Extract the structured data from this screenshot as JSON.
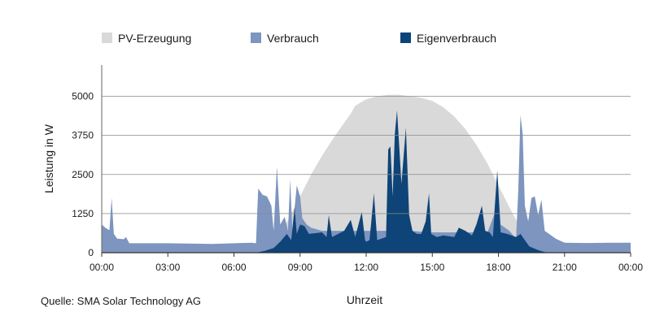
{
  "chart_data": {
    "type": "area",
    "xlabel": "Uhrzeit",
    "ylabel": "Leistung in W",
    "source": "Quelle: SMA Solar Technology AG",
    "ylim": [
      0,
      6000
    ],
    "xlim": [
      0,
      24
    ],
    "y_ticks": [
      0,
      1250,
      2500,
      3750,
      5000
    ],
    "y_tick_labels": [
      "0",
      "1250",
      "2500",
      "3750",
      "5000"
    ],
    "x_ticks": [
      0,
      3,
      6,
      9,
      12,
      15,
      18,
      21,
      24
    ],
    "x_tick_labels": [
      "00:00",
      "03:00",
      "06:00",
      "09:00",
      "12:00",
      "15:00",
      "18:00",
      "21:00",
      "00:00"
    ],
    "grid": "horizontal",
    "legend_position": "top",
    "series": [
      {
        "name": "PV-Erzeugung",
        "color": "#d9d9d9",
        "points": [
          [
            6.5,
            0
          ],
          [
            7.0,
            50
          ],
          [
            7.5,
            200
          ],
          [
            8.0,
            500
          ],
          [
            8.5,
            1100
          ],
          [
            9.0,
            1800
          ],
          [
            9.5,
            2500
          ],
          [
            10.0,
            3100
          ],
          [
            10.5,
            3650
          ],
          [
            11.0,
            4150
          ],
          [
            11.3,
            4450
          ],
          [
            11.5,
            4700
          ],
          [
            12.0,
            4900
          ],
          [
            12.5,
            5000
          ],
          [
            13.0,
            5050
          ],
          [
            13.5,
            5050
          ],
          [
            14.0,
            5000
          ],
          [
            14.5,
            4950
          ],
          [
            15.0,
            4850
          ],
          [
            15.5,
            4650
          ],
          [
            16.0,
            4350
          ],
          [
            16.5,
            3950
          ],
          [
            17.0,
            3450
          ],
          [
            17.5,
            2850
          ],
          [
            18.0,
            2150
          ],
          [
            18.5,
            1450
          ],
          [
            19.0,
            800
          ],
          [
            19.5,
            300
          ],
          [
            20.0,
            80
          ],
          [
            20.5,
            0
          ]
        ]
      },
      {
        "name": "Verbrauch",
        "color": "#7d95bf",
        "points": [
          [
            0.0,
            900
          ],
          [
            0.2,
            780
          ],
          [
            0.35,
            720
          ],
          [
            0.45,
            1750
          ],
          [
            0.55,
            600
          ],
          [
            0.7,
            450
          ],
          [
            1.0,
            430
          ],
          [
            1.1,
            500
          ],
          [
            1.25,
            300
          ],
          [
            3.0,
            300
          ],
          [
            5.0,
            280
          ],
          [
            6.0,
            300
          ],
          [
            6.8,
            320
          ],
          [
            7.0,
            300
          ],
          [
            7.1,
            2050
          ],
          [
            7.3,
            1850
          ],
          [
            7.5,
            1800
          ],
          [
            7.7,
            1500
          ],
          [
            7.8,
            700
          ],
          [
            7.95,
            2750
          ],
          [
            8.1,
            900
          ],
          [
            8.3,
            1150
          ],
          [
            8.45,
            700
          ],
          [
            8.55,
            2350
          ],
          [
            8.65,
            700
          ],
          [
            8.85,
            2150
          ],
          [
            9.0,
            1800
          ],
          [
            9.1,
            1100
          ],
          [
            9.3,
            900
          ],
          [
            9.5,
            800
          ],
          [
            10.0,
            700
          ],
          [
            11.0,
            700
          ],
          [
            12.0,
            700
          ],
          [
            13.0,
            700
          ],
          [
            14.0,
            700
          ],
          [
            15.0,
            650
          ],
          [
            16.0,
            650
          ],
          [
            17.0,
            650
          ],
          [
            17.5,
            650
          ],
          [
            17.8,
            1200
          ],
          [
            17.95,
            2650
          ],
          [
            18.1,
            900
          ],
          [
            18.5,
            700
          ],
          [
            18.8,
            450
          ],
          [
            18.9,
            2000
          ],
          [
            19.0,
            4400
          ],
          [
            19.1,
            3800
          ],
          [
            19.2,
            1500
          ],
          [
            19.35,
            1000
          ],
          [
            19.5,
            1750
          ],
          [
            19.65,
            1800
          ],
          [
            19.8,
            1200
          ],
          [
            19.95,
            1700
          ],
          [
            20.1,
            700
          ],
          [
            20.3,
            600
          ],
          [
            20.6,
            450
          ],
          [
            21.0,
            320
          ],
          [
            22.0,
            310
          ],
          [
            23.0,
            320
          ],
          [
            24.0,
            320
          ]
        ]
      },
      {
        "name": "Eigenverbrauch",
        "color": "#0e4478",
        "points": [
          [
            7.0,
            0
          ],
          [
            7.4,
            60
          ],
          [
            7.8,
            150
          ],
          [
            8.1,
            350
          ],
          [
            8.4,
            600
          ],
          [
            8.6,
            400
          ],
          [
            8.75,
            1450
          ],
          [
            8.85,
            600
          ],
          [
            9.0,
            900
          ],
          [
            9.2,
            850
          ],
          [
            9.4,
            600
          ],
          [
            10.0,
            650
          ],
          [
            10.2,
            500
          ],
          [
            10.3,
            1200
          ],
          [
            10.45,
            500
          ],
          [
            11.0,
            700
          ],
          [
            11.3,
            1050
          ],
          [
            11.5,
            500
          ],
          [
            11.8,
            1300
          ],
          [
            11.95,
            400
          ],
          [
            12.0,
            350
          ],
          [
            12.15,
            400
          ],
          [
            12.35,
            1900
          ],
          [
            12.5,
            400
          ],
          [
            12.9,
            500
          ],
          [
            13.0,
            3300
          ],
          [
            13.1,
            3400
          ],
          [
            13.2,
            1800
          ],
          [
            13.3,
            3800
          ],
          [
            13.4,
            4550
          ],
          [
            13.5,
            3400
          ],
          [
            13.6,
            2200
          ],
          [
            13.8,
            4000
          ],
          [
            13.95,
            1200
          ],
          [
            14.1,
            700
          ],
          [
            14.3,
            600
          ],
          [
            14.5,
            600
          ],
          [
            14.7,
            1000
          ],
          [
            14.85,
            1900
          ],
          [
            14.95,
            600
          ],
          [
            15.2,
            500
          ],
          [
            15.5,
            550
          ],
          [
            16.0,
            500
          ],
          [
            16.2,
            800
          ],
          [
            16.5,
            700
          ],
          [
            16.8,
            550
          ],
          [
            17.0,
            900
          ],
          [
            17.25,
            1500
          ],
          [
            17.4,
            700
          ],
          [
            17.6,
            650
          ],
          [
            17.75,
            500
          ],
          [
            17.95,
            2600
          ],
          [
            18.1,
            650
          ],
          [
            18.4,
            600
          ],
          [
            18.8,
            500
          ],
          [
            19.0,
            600
          ],
          [
            19.2,
            400
          ],
          [
            19.4,
            200
          ],
          [
            19.8,
            80
          ],
          [
            20.2,
            0
          ]
        ]
      }
    ]
  }
}
